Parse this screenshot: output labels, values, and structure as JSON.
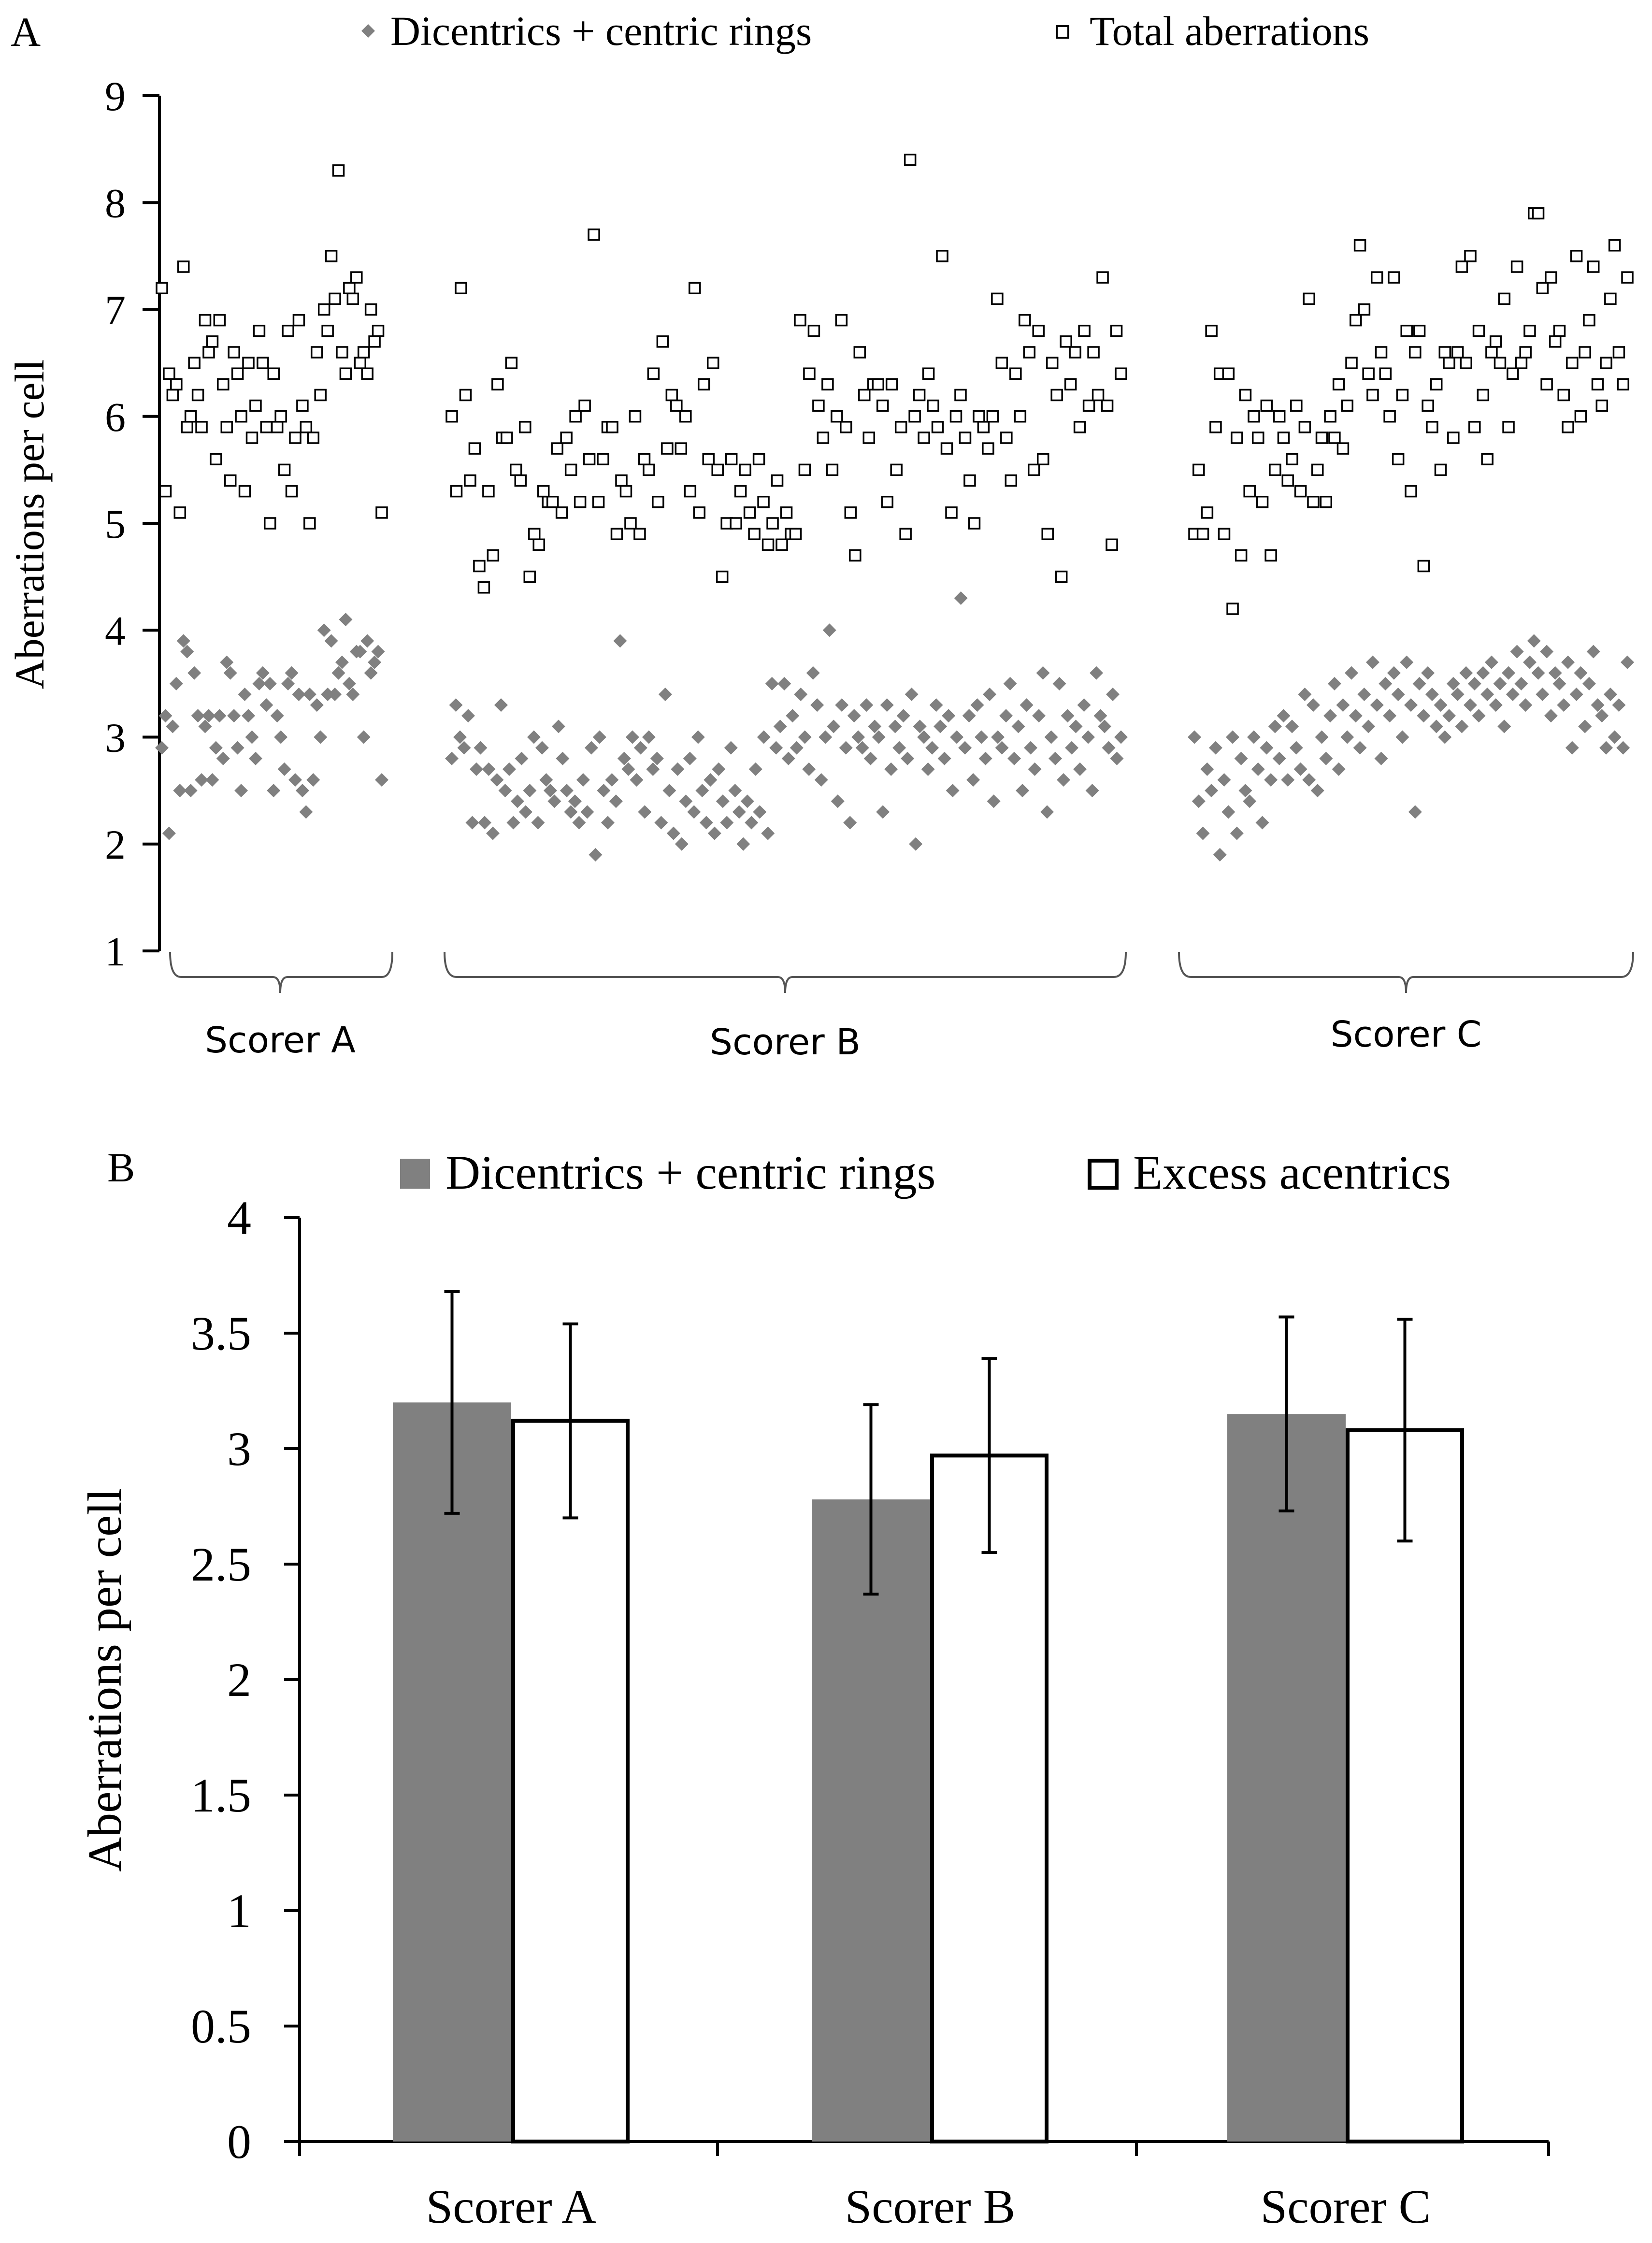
{
  "panel_a": {
    "label": "A",
    "legend": [
      {
        "name": "Dicentrics + centric rings",
        "marker": "diamond",
        "color": "#808080"
      },
      {
        "name": "Total aberrations",
        "marker": "open-square",
        "color": "#000000"
      }
    ],
    "ylabel": "Aberrations per cell",
    "yticks": [
      "1",
      "2",
      "3",
      "4",
      "5",
      "6",
      "7",
      "8",
      "9"
    ],
    "groups": [
      "Scorer A",
      "Scorer B",
      "Scorer C"
    ]
  },
  "panel_b": {
    "label": "B",
    "legend": [
      {
        "name": "Dicentrics + centric rings",
        "fill": "#808080"
      },
      {
        "name": "Excess acentrics",
        "fill": "#ffffff"
      }
    ],
    "ylabel": "Aberrations per cell",
    "yticks": [
      "0",
      "0.5",
      "1",
      "1.5",
      "2",
      "2.5",
      "3",
      "3.5",
      "4"
    ],
    "categories": [
      "Scorer A",
      "Scorer B",
      "Scorer C"
    ]
  },
  "chart_data": [
    {
      "type": "scatter",
      "title": "",
      "xlabel": "",
      "ylabel": "Aberrations per cell",
      "ylim": [
        1,
        9
      ],
      "groups": [
        "Scorer A",
        "Scorer B",
        "Scorer C"
      ],
      "series": [
        {
          "name": "Dicentrics + centric rings",
          "groups": [
            {
              "group": "Scorer A",
              "values": [
                2.9,
                3.2,
                2.1,
                3.1,
                3.5,
                2.5,
                3.9,
                3.8,
                2.5,
                3.6,
                3.2,
                2.6,
                3.1,
                3.2,
                2.6,
                2.9,
                3.2,
                2.8,
                3.7,
                3.6,
                3.2,
                2.9,
                2.5,
                3.4,
                3.2,
                3.0,
                2.8,
                3.5,
                3.6,
                3.3,
                3.5,
                2.5,
                3.2,
                3.0,
                2.7,
                3.5,
                3.6,
                2.6,
                3.4,
                2.5,
                2.3,
                3.4,
                2.6,
                3.3,
                3.0,
                4.0,
                3.4,
                3.9,
                3.4,
                3.6,
                3.7,
                4.1,
                3.5,
                3.4,
                3.8,
                3.8,
                3.0,
                3.9,
                3.6,
                3.7,
                3.8,
                2.6
              ]
            },
            {
              "group": "Scorer B",
              "values": [
                2.8,
                3.3,
                3.0,
                2.9,
                3.2,
                2.2,
                2.7,
                2.9,
                2.2,
                2.7,
                2.1,
                2.6,
                3.3,
                2.5,
                2.7,
                2.2,
                2.4,
                2.8,
                2.3,
                2.5,
                3.0,
                2.2,
                2.9,
                2.6,
                2.5,
                2.4,
                3.1,
                2.8,
                2.5,
                2.3,
                2.4,
                2.2,
                2.6,
                2.3,
                2.9,
                1.9,
                3.0,
                2.5,
                2.2,
                2.6,
                2.4,
                3.9,
                2.8,
                2.7,
                3.0,
                2.6,
                2.9,
                2.3,
                3.0,
                2.7,
                2.8,
                2.2,
                3.4,
                2.5,
                2.1,
                2.7,
                2.0,
                2.4,
                2.8,
                2.3,
                3.0,
                2.5,
                2.2,
                2.6,
                2.1,
                2.7,
                2.4,
                2.2,
                2.9,
                2.5,
                2.3,
                2.0,
                2.4,
                2.2,
                2.7,
                2.3,
                3.0,
                2.1,
                3.5,
                2.9,
                3.1,
                3.5,
                2.8,
                3.2,
                2.9,
                3.4,
                3.0,
                2.7,
                3.6,
                3.3,
                2.6,
                3.0,
                4.0,
                3.1,
                2.4,
                3.3,
                2.9,
                2.2,
                3.2,
                3.0,
                2.9,
                3.3,
                2.8,
                3.1,
                3.0,
                2.3,
                3.3,
                2.7,
                3.1,
                2.9,
                3.2,
                2.8,
                3.4,
                2.0,
                3.1,
                3.0,
                2.7,
                2.9,
                3.3,
                3.1,
                2.8,
                3.2,
                2.5,
                3.0,
                4.3,
                2.9,
                3.2,
                2.6,
                3.3,
                3.0,
                2.8,
                3.4,
                2.4,
                3.0,
                2.9,
                3.2,
                3.5,
                2.8,
                3.1,
                2.5,
                3.3,
                2.9,
                2.7,
                3.2,
                3.6,
                2.3,
                3.0,
                2.8,
                3.5,
                2.6,
                3.2,
                2.9,
                3.1,
                2.7,
                3.3,
                3.0,
                2.5,
                3.6,
                3.2,
                3.1,
                2.9,
                3.4,
                2.8,
                3.0
              ]
            },
            {
              "group": "Scorer C",
              "values": [
                3.0,
                2.4,
                2.1,
                2.7,
                2.5,
                2.9,
                1.9,
                2.6,
                2.3,
                3.0,
                2.1,
                2.8,
                2.5,
                2.4,
                3.0,
                2.7,
                2.2,
                2.9,
                2.6,
                3.1,
                2.8,
                3.2,
                2.6,
                3.1,
                2.9,
                2.7,
                3.4,
                2.6,
                3.3,
                2.5,
                3.0,
                2.8,
                3.2,
                3.5,
                2.7,
                3.3,
                3.0,
                3.6,
                3.2,
                2.9,
                3.4,
                3.1,
                3.7,
                3.3,
                2.8,
                3.5,
                3.2,
                3.6,
                3.4,
                3.0,
                3.7,
                3.3,
                2.3,
                3.5,
                3.2,
                3.6,
                3.4,
                3.1,
                3.3,
                3.0,
                3.2,
                3.5,
                3.4,
                3.1,
                3.6,
                3.3,
                3.5,
                3.2,
                3.6,
                3.4,
                3.7,
                3.3,
                3.5,
                3.1,
                3.6,
                3.4,
                3.8,
                3.5,
                3.3,
                3.7,
                3.9,
                3.6,
                3.4,
                3.8,
                3.2,
                3.6,
                3.5,
                3.3,
                3.7,
                2.9,
                3.4,
                3.6,
                3.1,
                3.5,
                3.8,
                3.3,
                3.2,
                2.9,
                3.4,
                3.0,
                3.3,
                2.9,
                3.7
              ]
            }
          ]
        },
        {
          "name": "Total aberrations",
          "groups": [
            {
              "group": "Scorer A",
              "values": [
                7.2,
                5.3,
                6.4,
                6.2,
                6.3,
                5.1,
                7.4,
                5.9,
                6.0,
                6.5,
                6.2,
                5.9,
                6.9,
                6.6,
                6.7,
                5.6,
                6.9,
                6.3,
                5.9,
                5.4,
                6.6,
                6.4,
                6.0,
                5.3,
                6.5,
                5.8,
                6.1,
                6.8,
                6.5,
                5.9,
                5.0,
                6.4,
                5.9,
                6.0,
                5.5,
                6.8,
                5.3,
                5.8,
                6.9,
                6.1,
                5.9,
                5.0,
                5.8,
                6.6,
                6.2,
                7.0,
                6.8,
                7.5,
                7.1,
                8.3,
                6.6,
                6.4,
                7.2,
                7.1,
                7.3,
                6.5,
                6.6,
                6.4,
                7.0,
                6.7,
                6.8,
                5.1
              ]
            },
            {
              "group": "Scorer B",
              "values": [
                6.0,
                5.3,
                7.2,
                6.2,
                5.4,
                5.7,
                4.6,
                4.4,
                5.3,
                4.7,
                6.3,
                5.8,
                5.8,
                6.5,
                5.5,
                5.4,
                5.9,
                4.5,
                4.9,
                4.8,
                5.3,
                5.2,
                5.2,
                5.7,
                5.1,
                5.8,
                5.5,
                6.0,
                5.2,
                6.1,
                5.6,
                7.7,
                5.2,
                5.6,
                5.9,
                5.9,
                4.9,
                5.4,
                5.3,
                5.0,
                6.0,
                4.9,
                5.6,
                5.5,
                6.4,
                5.2,
                6.7,
                5.7,
                6.2,
                6.1,
                5.7,
                6.0,
                5.3,
                7.2,
                5.1,
                6.3,
                5.6,
                6.5,
                5.5,
                4.5,
                5.0,
                5.6,
                5.0,
                5.3,
                5.5,
                5.1,
                4.9,
                5.6,
                5.2,
                4.8,
                5.0,
                5.4,
                4.8,
                5.1,
                4.9,
                4.9,
                6.9,
                5.5,
                6.4,
                6.8,
                6.1,
                5.8,
                6.3,
                5.5,
                6.0,
                6.9,
                5.9,
                5.1,
                4.7,
                6.6,
                6.2,
                5.8,
                6.3,
                6.3,
                6.1,
                5.2,
                6.3,
                5.5,
                5.9,
                4.9,
                8.4,
                6.0,
                6.2,
                5.8,
                6.4,
                6.1,
                5.9,
                7.5,
                5.7,
                5.1,
                6.0,
                6.2,
                5.8,
                5.4,
                5.0,
                6.0,
                5.9,
                5.7,
                6.0,
                7.1,
                6.5,
                5.8,
                5.4,
                6.4,
                6.0,
                6.9,
                6.6,
                5.5,
                6.8,
                5.6,
                4.9,
                6.5,
                6.2,
                4.5,
                6.7,
                6.3,
                6.6,
                5.9,
                6.8,
                6.1,
                6.6,
                6.2,
                7.3,
                6.1,
                4.8,
                6.8,
                6.4
              ]
            },
            {
              "group": "Scorer C",
              "values": [
                4.9,
                5.5,
                4.9,
                5.1,
                6.8,
                5.9,
                6.4,
                4.9,
                6.4,
                4.2,
                5.8,
                4.7,
                6.2,
                5.3,
                6.0,
                5.8,
                5.2,
                6.1,
                4.7,
                5.5,
                6.0,
                5.8,
                5.4,
                5.6,
                6.1,
                5.3,
                5.9,
                7.1,
                5.2,
                5.5,
                5.8,
                5.2,
                6.0,
                5.8,
                6.3,
                5.7,
                6.1,
                6.5,
                6.9,
                7.6,
                7.0,
                6.4,
                6.2,
                7.3,
                6.6,
                6.4,
                6.0,
                7.3,
                5.6,
                6.2,
                6.8,
                5.3,
                6.6,
                6.8,
                4.6,
                6.1,
                5.9,
                6.3,
                5.5,
                6.6,
                6.5,
                5.8,
                6.6,
                7.4,
                6.5,
                7.5,
                5.9,
                6.8,
                6.2,
                5.6,
                6.6,
                6.7,
                6.5,
                7.1,
                5.9,
                6.4,
                7.4,
                6.5,
                6.6,
                6.8,
                7.9,
                7.9,
                7.2,
                6.3,
                7.3,
                6.7,
                6.8,
                6.2,
                5.9,
                6.5,
                7.5,
                6.0,
                6.6,
                6.9,
                7.4,
                6.3,
                6.1,
                6.5,
                7.1,
                7.6,
                6.6,
                6.3,
                7.3
              ]
            }
          ]
        }
      ]
    },
    {
      "type": "bar",
      "title": "",
      "xlabel": "",
      "ylabel": "Aberrations per cell",
      "ylim": [
        0,
        4
      ],
      "categories": [
        "Scorer A",
        "Scorer B",
        "Scorer C"
      ],
      "series": [
        {
          "name": "Dicentrics + centric rings",
          "values": [
            3.2,
            2.78,
            3.15
          ],
          "errors": [
            0.48,
            0.41,
            0.42
          ]
        },
        {
          "name": "Excess acentrics",
          "values": [
            3.12,
            2.97,
            3.08
          ],
          "errors": [
            0.42,
            0.42,
            0.48
          ]
        }
      ]
    }
  ]
}
